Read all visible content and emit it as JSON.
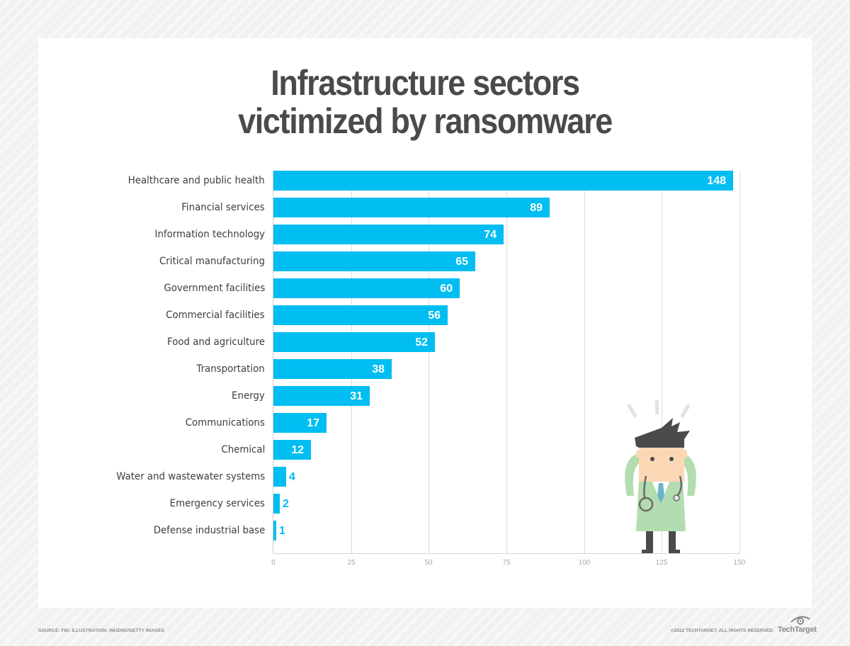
{
  "title": {
    "line1": "Infrastructure sectors",
    "line2": "victimized by ransomware"
  },
  "footer": {
    "source": "SOURCE: FBI; ILLUSTRATION: INUENG/GETTY IMAGES",
    "copyright": "©2022 TECHTARGET. ALL RIGHTS RESERVED",
    "brand": "TechTarget",
    "brand_icon": "eye-logo-icon"
  },
  "illustration": {
    "description": "stressed doctor cartoon holding head, with stethoscope",
    "icon": "doctor-illustration"
  },
  "colors": {
    "bar": "#00bdf2",
    "title": "#4a4a4c",
    "label": "#3e3e40",
    "gridline": "#dcdcdc",
    "tick": "#a8a8a8"
  },
  "chart_data": {
    "type": "bar",
    "orientation": "horizontal",
    "title": "Infrastructure sectors victimized by ransomware",
    "xlabel": "",
    "ylabel": "",
    "xlim": [
      0,
      150
    ],
    "x_ticks": [
      "0",
      "25",
      "50",
      "75",
      "100",
      "125",
      "150"
    ],
    "grid": true,
    "legend": null,
    "categories": [
      "Healthcare and public health",
      "Financial services",
      "Information technology",
      "Critical manufacturing",
      "Government facilities",
      "Commercial facilities",
      "Food and agriculture",
      "Transportation",
      "Energy",
      "Communications",
      "Chemical",
      "Water and wastewater systems",
      "Emergency services",
      "Defense industrial base"
    ],
    "values": [
      148,
      89,
      74,
      65,
      60,
      56,
      52,
      38,
      31,
      17,
      12,
      4,
      2,
      1
    ],
    "source": "FBI"
  }
}
